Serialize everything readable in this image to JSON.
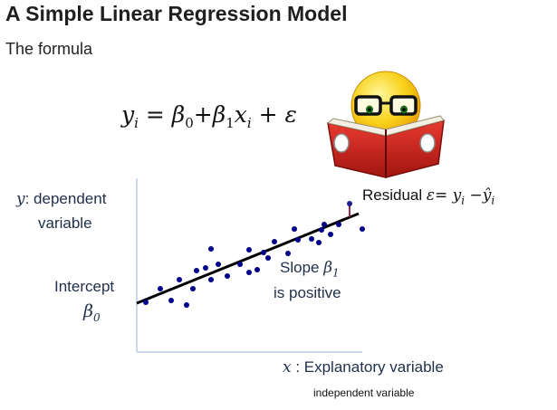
{
  "title": "A Simple Linear Regression Model",
  "subtitle": "The formula",
  "formula": {
    "y": "y",
    "i": "i",
    "eq": " = ",
    "b": "β",
    "s0": "0",
    "plus1": "+",
    "s1": "1",
    "x": "x",
    "plus2": " + ",
    "eps": "ε"
  },
  "labels": {
    "y_axis_math": "y",
    "y_axis_line1": ": dependent",
    "y_axis_line2": "variable",
    "intercept_word": "Intercept",
    "intercept_sym": "β",
    "intercept_sub": "0",
    "residual_word": "Residual ",
    "residual_math": "ε= y",
    "residual_sub": "i",
    "residual_minus": " −ŷ",
    "residual_sub2": "i",
    "slope_word": "Slope ",
    "slope_sym": "β",
    "slope_sub": "1",
    "slope_line2": "is positive",
    "x_axis_math": "x",
    "x_axis_text": " : Explanatory variable",
    "x_axis_small": "independent variable"
  },
  "colors": {
    "points": "#00008b",
    "line": "#000000",
    "axes": "#b8cbe0",
    "residual": "#8b1a3a",
    "label": "#1f2f4a"
  },
  "icon": "emoji-reading-book-icon"
}
